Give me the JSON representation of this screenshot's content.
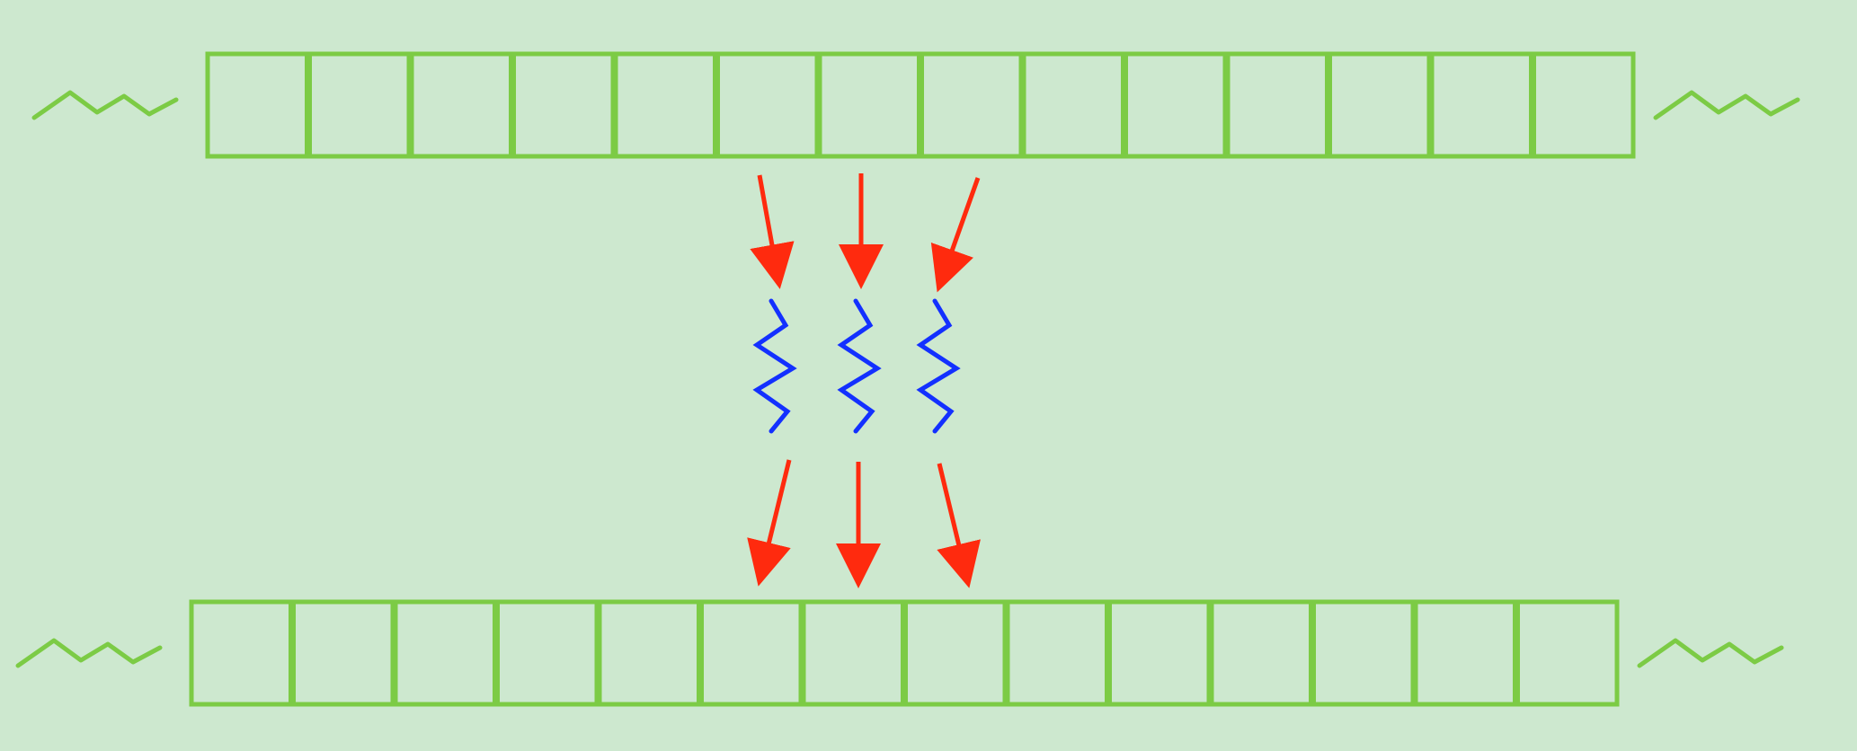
{
  "diagram": {
    "background_color": "#cde8cf",
    "cell_stroke_color": "#7ccb45",
    "cell_fill_color": "#cde8cf",
    "arrow_color": "#ff2a0e",
    "spring_color": "#1330ff",
    "top_row": {
      "cell_count": 14,
      "continues_left": true,
      "continues_right": true
    },
    "bottom_row": {
      "cell_count": 14,
      "continues_left": true,
      "continues_right": true
    },
    "springs": {
      "count": 3,
      "label": ""
    },
    "arrows": {
      "incoming_count": 3,
      "outgoing_count": 3
    }
  }
}
